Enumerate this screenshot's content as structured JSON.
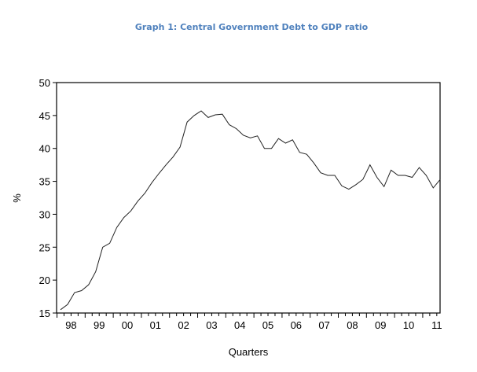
{
  "chart_data": {
    "type": "line",
    "title": "Graph 1: Central Government Debt to GDP ratio",
    "title_color": "#4f81bd",
    "xlabel": "Quarters",
    "ylabel": "%",
    "ylim": [
      15,
      50
    ],
    "yticks": [
      15,
      20,
      25,
      30,
      35,
      40,
      45,
      50
    ],
    "xtick_labels": [
      "98",
      "99",
      "00",
      "01",
      "02",
      "03",
      "04",
      "05",
      "06",
      "07",
      "08",
      "09",
      "10",
      "11"
    ],
    "grid": false,
    "start_quarter": "1998Q1",
    "series": [
      {
        "name": "Debt to GDP",
        "values": [
          15.5,
          16.3,
          18.1,
          18.4,
          19.3,
          21.3,
          25.0,
          25.6,
          28.0,
          29.5,
          30.5,
          32.0,
          33.2,
          34.8,
          36.2,
          37.5,
          38.7,
          40.2,
          44.0,
          45.0,
          45.7,
          44.7,
          45.1,
          45.2,
          43.6,
          43.0,
          42.0,
          41.6,
          41.9,
          40.0,
          40.0,
          41.5,
          40.8,
          41.3,
          39.4,
          39.1,
          37.8,
          36.3,
          35.9,
          35.9,
          34.3,
          33.8,
          34.5,
          35.3,
          37.5,
          35.6,
          34.2,
          36.7,
          35.9,
          35.9,
          35.6,
          37.1,
          35.9,
          34.0,
          35.3
        ]
      }
    ]
  }
}
